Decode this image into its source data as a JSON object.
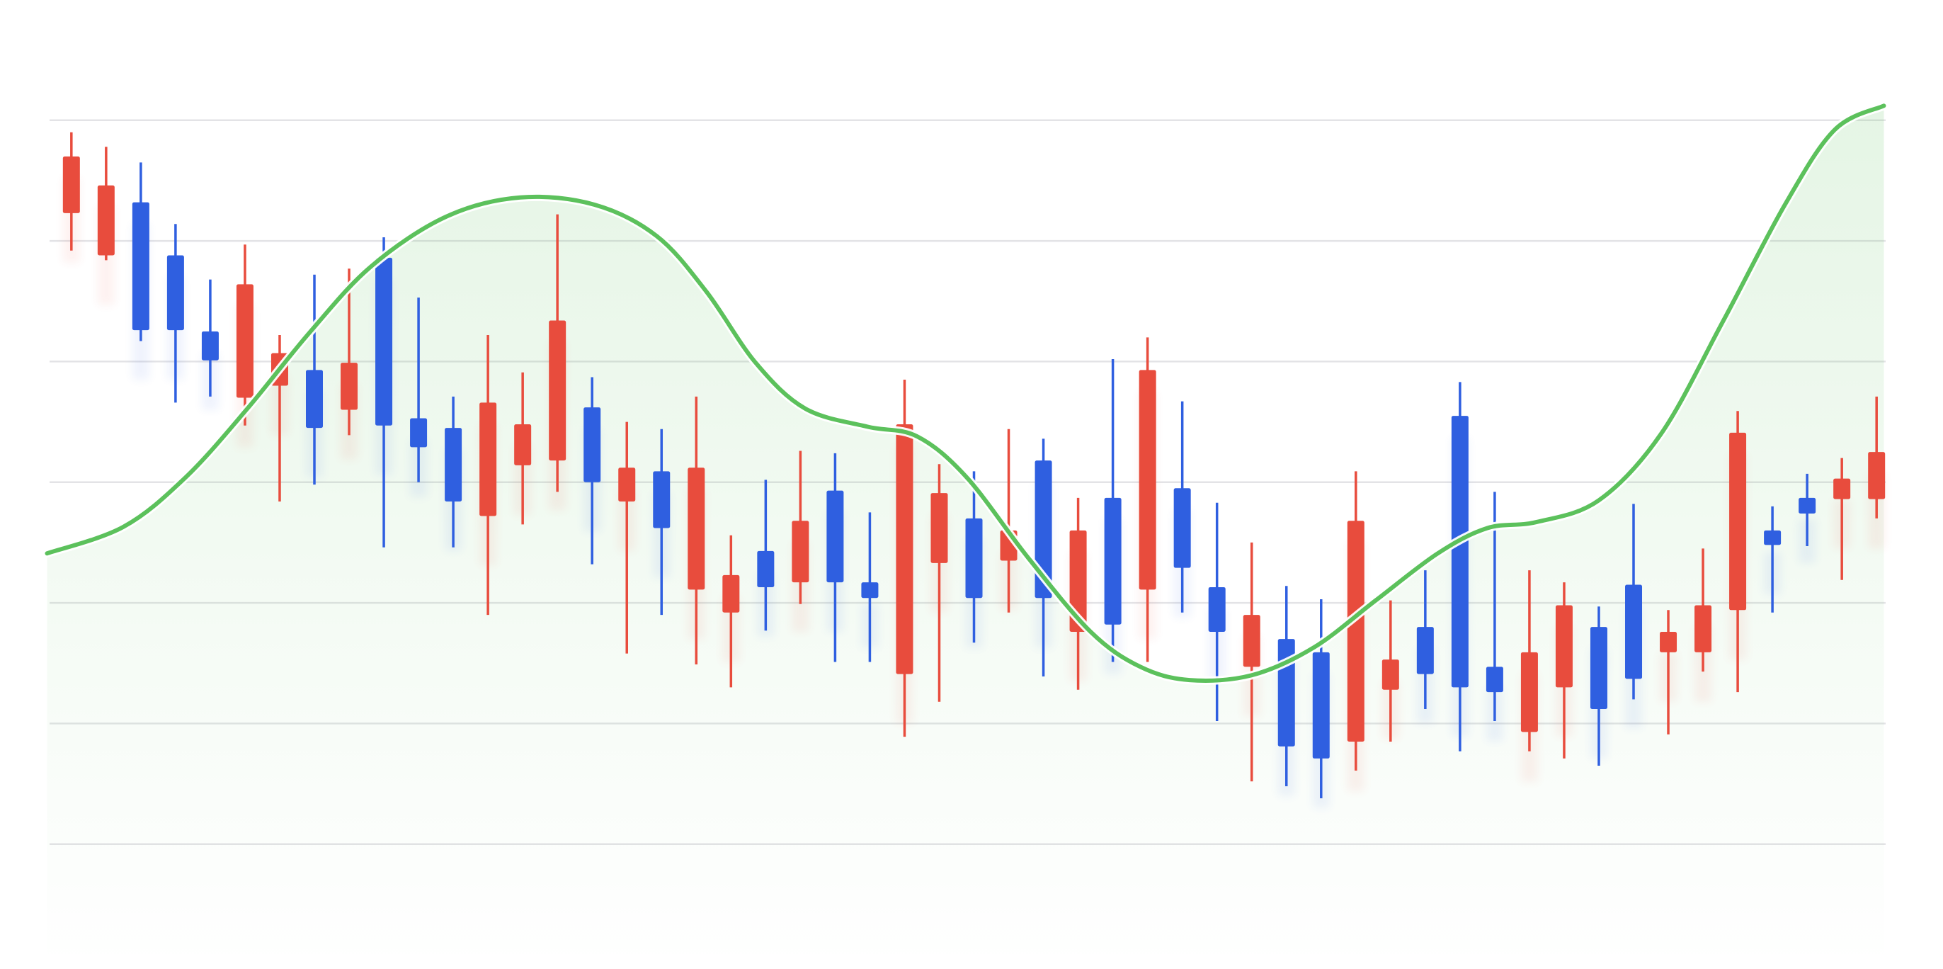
{
  "chart_data": {
    "type": "candlestick",
    "xlim": [
      -0.7,
      52.2
    ],
    "ylim": [
      -1,
      7
    ],
    "yticks": [
      0,
      1,
      2,
      3,
      4,
      5,
      6
    ],
    "grid": true,
    "up_color": "#2f5fe0",
    "down_color": "#e84c3d",
    "open": [
      5.7,
      5.46,
      4.26,
      4.26,
      4.01,
      4.64,
      4.07,
      3.45,
      3.99,
      3.47,
      3.29,
      2.84,
      3.66,
      3.48,
      4.34,
      3.0,
      3.12,
      2.62,
      3.12,
      2.23,
      2.13,
      2.68,
      2.17,
      2.04,
      3.48,
      2.91,
      2.04,
      2.6,
      2.04,
      2.6,
      1.82,
      3.93,
      2.29,
      1.76,
      1.9,
      0.81,
      0.71,
      2.68,
      1.53,
      1.41,
      1.3,
      1.26,
      1.59,
      1.98,
      1.12,
      1.37,
      1.76,
      1.98,
      3.41,
      2.48,
      2.74,
      3.03,
      3.25
    ],
    "high": [
      5.9,
      5.78,
      5.65,
      5.14,
      4.68,
      4.97,
      4.22,
      4.72,
      4.77,
      5.03,
      4.53,
      3.71,
      4.22,
      3.91,
      5.22,
      3.87,
      3.5,
      3.44,
      3.71,
      2.56,
      3.02,
      3.26,
      3.24,
      2.75,
      3.85,
      3.15,
      3.09,
      3.44,
      3.36,
      2.87,
      4.02,
      4.2,
      3.67,
      2.83,
      2.5,
      2.14,
      2.03,
      3.09,
      2.02,
      2.27,
      3.83,
      2.92,
      2.27,
      2.17,
      1.97,
      2.82,
      1.94,
      2.45,
      3.59,
      2.8,
      3.07,
      3.2,
      3.71
    ],
    "low": [
      4.92,
      4.84,
      4.17,
      3.66,
      3.71,
      3.47,
      2.84,
      2.98,
      3.39,
      2.46,
      3.0,
      2.46,
      1.9,
      2.65,
      2.92,
      2.32,
      1.58,
      1.9,
      1.49,
      1.3,
      1.77,
      1.99,
      1.51,
      1.51,
      0.89,
      1.18,
      1.67,
      1.92,
      1.39,
      1.28,
      1.51,
      1.51,
      1.92,
      1.02,
      0.52,
      0.48,
      0.38,
      0.61,
      0.85,
      1.12,
      0.77,
      1.02,
      0.77,
      0.71,
      0.65,
      1.2,
      0.91,
      1.43,
      1.26,
      1.92,
      2.47,
      2.19,
      2.7
    ],
    "close": [
      5.23,
      4.88,
      5.32,
      4.88,
      4.25,
      3.7,
      3.8,
      3.93,
      3.6,
      4.86,
      3.53,
      3.45,
      2.72,
      3.14,
      3.18,
      3.62,
      2.84,
      3.09,
      2.11,
      1.92,
      2.43,
      2.17,
      2.93,
      2.17,
      1.41,
      2.33,
      2.7,
      2.35,
      3.18,
      1.76,
      2.87,
      2.11,
      2.95,
      2.13,
      1.47,
      1.7,
      1.59,
      0.85,
      1.28,
      1.8,
      3.55,
      1.47,
      0.93,
      1.3,
      1.8,
      2.15,
      1.59,
      1.59,
      1.94,
      2.6,
      2.87,
      2.86,
      2.86
    ],
    "line": {
      "color": "#5cc15c",
      "x": [
        -0.7,
        1.5,
        3.29,
        5.07,
        6.86,
        8.64,
        10.79,
        12.93,
        15.07,
        16.86,
        18.29,
        19.71,
        21.14,
        22.93,
        24.36,
        25.79,
        27.57,
        29.36,
        30.79,
        32.21,
        34.0,
        35.79,
        37.57,
        39.36,
        40.79,
        42.21,
        44.0,
        45.79,
        47.57,
        49.36,
        50.79,
        52.21
      ],
      "values": [
        2.41,
        2.63,
        3.04,
        3.61,
        4.24,
        4.79,
        5.2,
        5.36,
        5.3,
        5.04,
        4.58,
        3.99,
        3.61,
        3.46,
        3.38,
        3.04,
        2.37,
        1.76,
        1.47,
        1.36,
        1.4,
        1.63,
        2.02,
        2.41,
        2.62,
        2.67,
        2.85,
        3.4,
        4.33,
        5.3,
        5.92,
        6.12
      ]
    }
  }
}
